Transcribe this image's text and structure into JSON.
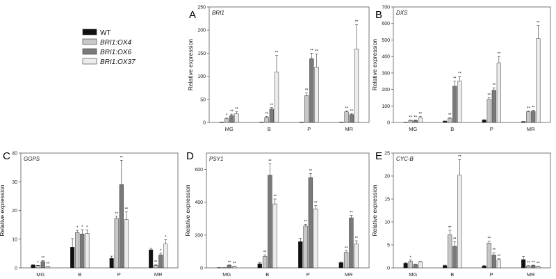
{
  "legend": [
    {
      "label": "WT",
      "italic": false,
      "color": "#111111"
    },
    {
      "label": "BRI1:OX4",
      "italic": true,
      "color": "#c8c8c8"
    },
    {
      "label": "BRI1:OX6",
      "italic": true,
      "color": "#7a7a7a"
    },
    {
      "label": "BRI1:OX37",
      "italic": true,
      "color": "#ececec"
    }
  ],
  "chart_data": [
    {
      "type": "bar",
      "panel": "A",
      "title": "BRI1",
      "title_italic": true,
      "ylabel": "Relative expression",
      "xlabel": "",
      "categories": [
        "MG",
        "B",
        "P",
        "MR"
      ],
      "ylim": [
        0,
        250
      ],
      "yticks": [
        0,
        50,
        100,
        150,
        200,
        250
      ],
      "series": [
        {
          "name": "WT",
          "values": [
            1,
            1,
            1,
            1
          ],
          "errors": [
            0,
            0,
            0,
            0
          ],
          "sig": [
            "",
            "",
            "",
            ""
          ]
        },
        {
          "name": "BRI1:OX4",
          "values": [
            8,
            11,
            58,
            23
          ],
          "errors": [
            2,
            2,
            6,
            2
          ],
          "sig": [
            "*",
            "**",
            "**",
            "**"
          ]
        },
        {
          "name": "BRI1:OX6",
          "values": [
            15,
            29,
            138,
            17
          ],
          "errors": [
            3,
            3,
            12,
            2
          ],
          "sig": [
            "**",
            "**",
            "**",
            "**"
          ]
        },
        {
          "name": "BRI1:OX37",
          "values": [
            19,
            109,
            120,
            159
          ],
          "errors": [
            4,
            36,
            28,
            53
          ],
          "sig": [
            "**",
            "**",
            "**",
            "**"
          ]
        }
      ]
    },
    {
      "type": "bar",
      "panel": "B",
      "title": "DXS",
      "title_italic": true,
      "ylabel": "Relative expression",
      "xlabel": "",
      "categories": [
        "MG",
        "B",
        "P",
        "MR"
      ],
      "ylim": [
        0,
        700
      ],
      "yticks": [
        0,
        100,
        200,
        300,
        400,
        500,
        600,
        700
      ],
      "series": [
        {
          "name": "WT",
          "values": [
            2,
            8,
            15,
            5
          ],
          "errors": [
            0,
            1,
            2,
            1
          ],
          "sig": [
            "",
            "",
            "",
            ""
          ]
        },
        {
          "name": "BRI1:OX4",
          "values": [
            12,
            25,
            140,
            65
          ],
          "errors": [
            3,
            4,
            10,
            5
          ],
          "sig": [
            "**",
            "**",
            "**",
            "**"
          ]
        },
        {
          "name": "BRI1:OX6",
          "values": [
            12,
            220,
            195,
            68
          ],
          "errors": [
            3,
            30,
            15,
            6
          ],
          "sig": [
            "**",
            "**",
            "**",
            "**"
          ]
        },
        {
          "name": "BRI1:OX37",
          "values": [
            28,
            250,
            360,
            508
          ],
          "errors": [
            8,
            30,
            40,
            80
          ],
          "sig": [
            "**",
            "**",
            "**",
            "**"
          ]
        }
      ]
    },
    {
      "type": "bar",
      "panel": "C",
      "title": "GGPS",
      "title_italic": true,
      "ylabel": "Relative expression",
      "xlabel": "",
      "categories": [
        "MG",
        "B",
        "P",
        "MR"
      ],
      "ylim": [
        0,
        40
      ],
      "yticks": [
        0,
        10,
        20,
        30,
        40
      ],
      "series": [
        {
          "name": "WT",
          "values": [
            1,
            7.2,
            3.3,
            6.3
          ],
          "errors": [
            0.1,
            3,
            0.8,
            0.5
          ],
          "sig": [
            "",
            "",
            "",
            ""
          ]
        },
        {
          "name": "BRI1:OX4",
          "values": [
            0.8,
            12.3,
            17.2,
            0.9
          ],
          "errors": [
            0.1,
            0.8,
            0.8,
            0.2
          ],
          "sig": [
            "*",
            "*",
            "**",
            "**"
          ]
        },
        {
          "name": "BRI1:OX6",
          "values": [
            2.2,
            11.8,
            29,
            4.5
          ],
          "errors": [
            0.3,
            1.5,
            8.5,
            0.6
          ],
          "sig": [
            "**",
            "*",
            "**",
            "*"
          ]
        },
        {
          "name": "BRI1:OX37",
          "values": [
            0.4,
            12,
            16.8,
            8.3
          ],
          "errors": [
            0.1,
            1.2,
            2.7,
            1.5
          ],
          "sig": [
            "**",
            "*",
            "**",
            "*"
          ]
        }
      ]
    },
    {
      "type": "bar",
      "panel": "D",
      "title": "PSY1",
      "title_italic": true,
      "ylabel": "Relative expression",
      "xlabel": "",
      "categories": [
        "MG",
        "B",
        "P",
        "MR"
      ],
      "ylim": [
        0,
        700
      ],
      "yticks": [
        0,
        200,
        400,
        600
      ],
      "series": [
        {
          "name": "WT",
          "values": [
            2,
            25,
            160,
            32
          ],
          "errors": [
            0,
            8,
            20,
            3
          ],
          "sig": [
            "",
            "",
            "",
            ""
          ]
        },
        {
          "name": "BRI1:OX4",
          "values": [
            2,
            70,
            255,
            95
          ],
          "errors": [
            0,
            8,
            10,
            10
          ],
          "sig": [
            "",
            "**",
            "**",
            "**"
          ]
        },
        {
          "name": "BRI1:OX6",
          "values": [
            15,
            565,
            550,
            305
          ],
          "errors": [
            3,
            70,
            25,
            15
          ],
          "sig": [
            "**",
            "**",
            "**",
            "**"
          ]
        },
        {
          "name": "BRI1:OX37",
          "values": [
            8,
            390,
            360,
            145
          ],
          "errors": [
            2,
            30,
            20,
            20
          ],
          "sig": [
            "**",
            "**",
            "**",
            "**"
          ]
        }
      ]
    },
    {
      "type": "bar",
      "panel": "E",
      "title": "CYC-B",
      "title_italic": true,
      "ylabel": "Relative expression",
      "xlabel": "",
      "categories": [
        "MG",
        "B",
        "P",
        "MR"
      ],
      "ylim": [
        0,
        25
      ],
      "yticks": [
        0,
        5,
        10,
        15,
        20,
        25
      ],
      "series": [
        {
          "name": "WT",
          "values": [
            1,
            0.5,
            0.4,
            1.8
          ],
          "errors": [
            0.1,
            0.1,
            0.1,
            0.7
          ],
          "sig": [
            "",
            "",
            "",
            ""
          ]
        },
        {
          "name": "BRI1:OX4",
          "values": [
            1.4,
            7.2,
            5.4,
            0.4
          ],
          "errors": [
            0.3,
            1,
            0.4,
            0.1
          ],
          "sig": [
            "*",
            "**",
            "**",
            "**"
          ]
        },
        {
          "name": "BRI1:OX6",
          "values": [
            0.7,
            4.7,
            2.8,
            0.5
          ],
          "errors": [
            0.1,
            1,
            0.5,
            0.1
          ],
          "sig": [
            "",
            "**",
            "**",
            "**"
          ]
        },
        {
          "name": "BRI1:OX37",
          "values": [
            1.3,
            20.2,
            1.7,
            0.3
          ],
          "errors": [
            0.1,
            3.4,
            0.3,
            0.1
          ],
          "sig": [
            "",
            "**",
            "**",
            "**"
          ]
        }
      ]
    }
  ]
}
